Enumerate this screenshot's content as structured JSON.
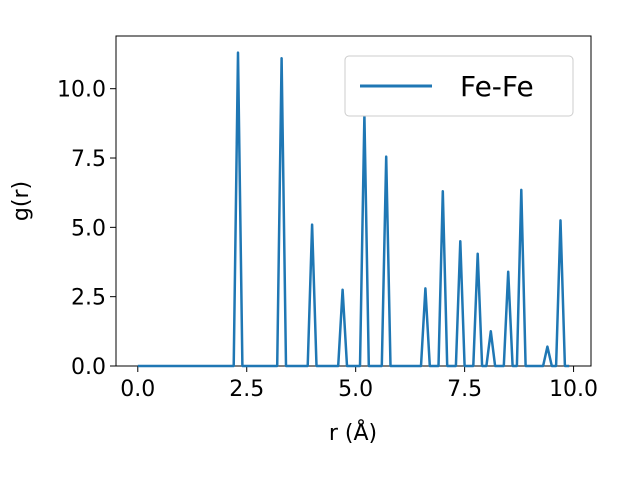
{
  "chart_data": {
    "type": "line",
    "xlabel": "r (Å)",
    "ylabel": "g(r)",
    "xlim": [
      -0.5,
      10.4
    ],
    "ylim": [
      0,
      11.9
    ],
    "xticks": [
      "0.0",
      "2.5",
      "5.0",
      "7.5",
      "10.0"
    ],
    "yticks": [
      "0.0",
      "2.5",
      "5.0",
      "7.5",
      "10.0"
    ],
    "legend_position": "top-right",
    "grid": false,
    "series": [
      {
        "name": "Fe-Fe",
        "color": "#1f77b4",
        "x": [
          0.0,
          2.2,
          2.3,
          2.4,
          3.2,
          3.3,
          3.4,
          3.9,
          4.0,
          4.1,
          4.6,
          4.7,
          4.8,
          5.1,
          5.2,
          5.3,
          5.6,
          5.7,
          5.8,
          6.5,
          6.6,
          6.7,
          6.9,
          7.0,
          7.1,
          7.3,
          7.4,
          7.5,
          7.7,
          7.8,
          7.9,
          8.0,
          8.1,
          8.2,
          8.4,
          8.5,
          8.6,
          8.7,
          8.8,
          8.9,
          9.3,
          9.4,
          9.5,
          9.6,
          9.7,
          9.8,
          9.9
        ],
        "y": [
          0,
          0,
          11.3,
          0,
          0,
          11.1,
          0,
          0,
          5.1,
          0,
          0,
          2.75,
          0,
          0,
          9.05,
          0,
          0,
          7.55,
          0,
          0,
          2.8,
          0,
          0,
          6.3,
          0,
          0,
          4.5,
          0,
          0,
          4.05,
          0,
          0,
          1.25,
          0,
          0,
          3.4,
          0,
          0,
          6.35,
          0,
          0,
          0.7,
          0,
          0,
          5.25,
          0,
          0
        ]
      }
    ]
  }
}
